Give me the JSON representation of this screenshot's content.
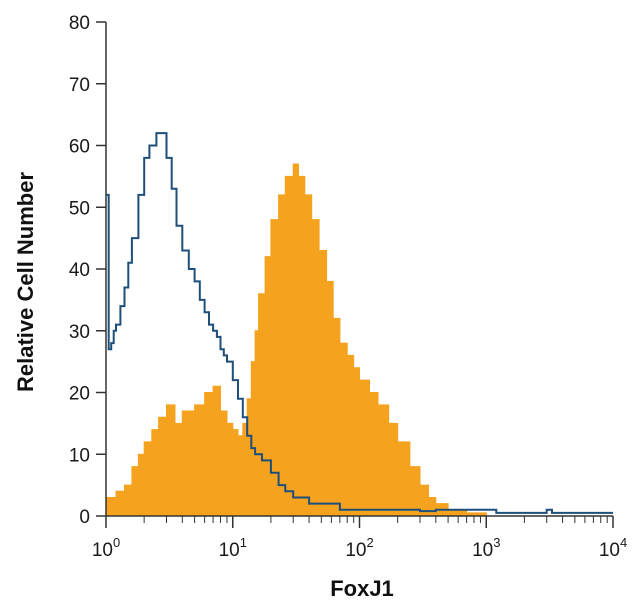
{
  "chart_data": {
    "type": "area",
    "xlabel": "FoxJ1",
    "ylabel": "Relative Cell Number",
    "x_scale": "log",
    "xlim": [
      1,
      10000
    ],
    "ylim": [
      0,
      80
    ],
    "grid": false,
    "colors": {
      "filled": "#f5a21f",
      "outline": "#1d4f7a",
      "axis": "#333333"
    },
    "x_ticks": [
      {
        "base": "10",
        "exp": "0",
        "value": 1
      },
      {
        "base": "10",
        "exp": "1",
        "value": 10
      },
      {
        "base": "10",
        "exp": "2",
        "value": 100
      },
      {
        "base": "10",
        "exp": "3",
        "value": 1000
      },
      {
        "base": "10",
        "exp": "4",
        "value": 10000
      }
    ],
    "y_ticks": [
      "0",
      "10",
      "20",
      "30",
      "40",
      "50",
      "60",
      "70",
      "80"
    ],
    "series": [
      {
        "style": "filled",
        "points": [
          [
            1.0,
            3
          ],
          [
            1.2,
            4
          ],
          [
            1.4,
            5
          ],
          [
            1.6,
            8
          ],
          [
            1.8,
            10
          ],
          [
            2.0,
            12
          ],
          [
            2.3,
            14
          ],
          [
            2.6,
            16
          ],
          [
            3.0,
            18
          ],
          [
            3.5,
            15
          ],
          [
            4.0,
            17
          ],
          [
            5.0,
            18
          ],
          [
            6.0,
            20
          ],
          [
            7.0,
            21
          ],
          [
            8.0,
            17
          ],
          [
            9.0,
            15
          ],
          [
            10.0,
            14
          ],
          [
            11.0,
            13
          ],
          [
            12.0,
            15
          ],
          [
            13.0,
            19
          ],
          [
            14.0,
            25
          ],
          [
            15.0,
            30
          ],
          [
            16.0,
            36
          ],
          [
            18.0,
            42
          ],
          [
            20.0,
            48
          ],
          [
            23.0,
            52
          ],
          [
            26.0,
            55
          ],
          [
            30.0,
            57
          ],
          [
            33.0,
            55
          ],
          [
            37.0,
            52
          ],
          [
            42.0,
            48
          ],
          [
            48.0,
            43
          ],
          [
            55.0,
            38
          ],
          [
            62.0,
            32
          ],
          [
            70.0,
            28
          ],
          [
            80.0,
            26
          ],
          [
            90.0,
            24
          ],
          [
            100.0,
            22
          ],
          [
            120.0,
            20
          ],
          [
            140.0,
            18
          ],
          [
            170.0,
            15
          ],
          [
            200.0,
            12
          ],
          [
            250.0,
            8
          ],
          [
            300.0,
            5
          ],
          [
            350.0,
            3
          ],
          [
            400.0,
            2
          ],
          [
            500.0,
            1
          ],
          [
            700.0,
            0.5
          ],
          [
            1000.0,
            0
          ]
        ]
      },
      {
        "style": "outline",
        "points": [
          [
            1.0,
            52
          ],
          [
            1.05,
            27
          ],
          [
            1.1,
            28
          ],
          [
            1.15,
            30
          ],
          [
            1.2,
            31
          ],
          [
            1.3,
            34
          ],
          [
            1.4,
            37
          ],
          [
            1.5,
            41
          ],
          [
            1.6,
            45
          ],
          [
            1.8,
            52
          ],
          [
            2.0,
            58
          ],
          [
            2.2,
            60
          ],
          [
            2.5,
            62
          ],
          [
            2.8,
            62
          ],
          [
            3.0,
            58
          ],
          [
            3.3,
            53
          ],
          [
            3.6,
            47
          ],
          [
            4.0,
            43
          ],
          [
            4.5,
            40
          ],
          [
            5.0,
            38
          ],
          [
            5.5,
            35
          ],
          [
            6.0,
            33
          ],
          [
            6.5,
            31
          ],
          [
            7.0,
            30
          ],
          [
            7.5,
            29
          ],
          [
            8.0,
            27
          ],
          [
            8.5,
            26
          ],
          [
            9.0,
            25
          ],
          [
            10.0,
            22
          ],
          [
            11.0,
            19
          ],
          [
            12.0,
            16
          ],
          [
            13.0,
            13
          ],
          [
            14.0,
            11
          ],
          [
            15.0,
            10
          ],
          [
            17.0,
            9
          ],
          [
            20.0,
            7
          ],
          [
            23.0,
            5
          ],
          [
            26.0,
            4
          ],
          [
            30.0,
            3
          ],
          [
            35.0,
            3
          ],
          [
            40.0,
            2
          ],
          [
            50.0,
            2
          ],
          [
            60.0,
            2
          ],
          [
            70.0,
            1
          ],
          [
            100.0,
            1
          ],
          [
            150.0,
            1
          ],
          [
            200.0,
            1
          ],
          [
            300.0,
            0.8
          ],
          [
            400.0,
            1
          ],
          [
            500.0,
            1
          ],
          [
            700.0,
            1
          ],
          [
            900.0,
            1
          ],
          [
            1200.0,
            0.5
          ],
          [
            2000.0,
            0.5
          ],
          [
            3000.0,
            1
          ],
          [
            3300.0,
            0.5
          ],
          [
            10000.0,
            0.5
          ]
        ]
      }
    ]
  }
}
